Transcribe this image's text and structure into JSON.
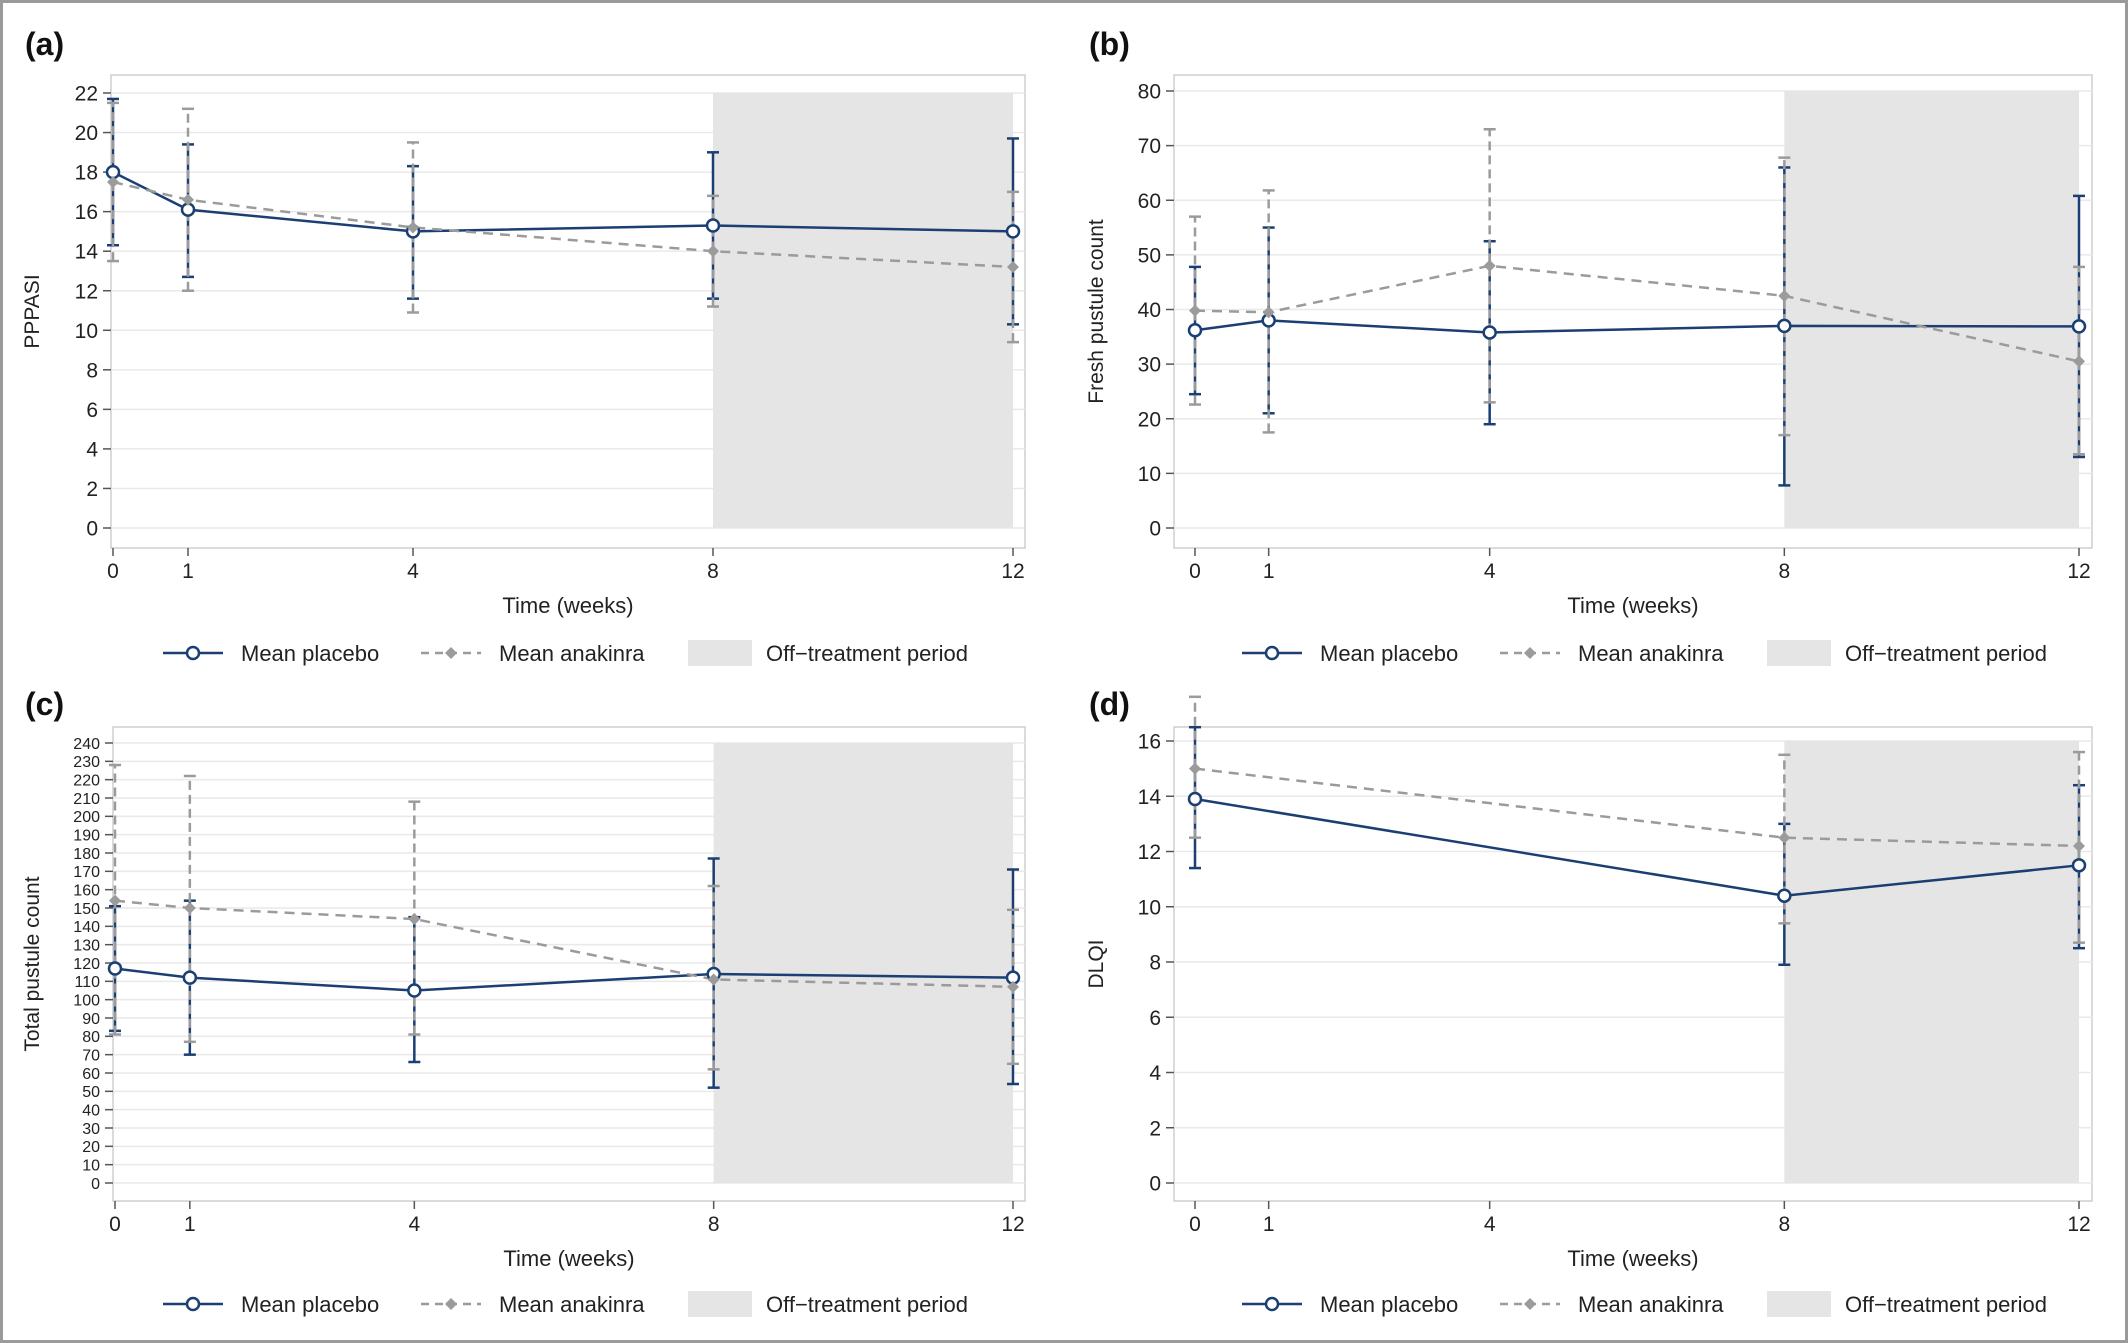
{
  "colors": {
    "placebo": "#1b3f73",
    "anakinra": "#9b9b9b",
    "offtreat": "#e5e5e5",
    "grid": "#e9e9e9",
    "axis": "#555555",
    "text": "#222222"
  },
  "chart_data": [
    {
      "panel_label": "(a)",
      "type": "line",
      "xlabel": "Time (weeks)",
      "ylabel": "PPPASI",
      "x": [
        0,
        1,
        4,
        8,
        12
      ],
      "xticks": [
        0,
        1,
        4,
        8,
        12
      ],
      "ylim": [
        0,
        22
      ],
      "yticks": [
        0,
        2,
        4,
        6,
        8,
        10,
        12,
        14,
        16,
        18,
        20,
        22
      ],
      "shaded": {
        "from": 8,
        "to": 12,
        "label": "Off−treatment period"
      },
      "series": [
        {
          "name": "Mean placebo",
          "style": "solid-circle",
          "values": [
            18.0,
            16.1,
            15.0,
            15.3,
            15.0
          ],
          "lower": [
            14.3,
            12.7,
            11.6,
            11.6,
            10.3
          ],
          "upper": [
            21.7,
            19.4,
            18.3,
            19.0,
            19.7
          ]
        },
        {
          "name": "Mean anakinra",
          "style": "dashed-diamond",
          "values": [
            17.5,
            16.6,
            15.2,
            14.0,
            13.2
          ],
          "lower": [
            13.5,
            12.0,
            10.9,
            11.2,
            9.4
          ],
          "upper": [
            21.5,
            21.2,
            19.5,
            16.8,
            17.0
          ]
        }
      ],
      "legend": [
        "Mean placebo",
        "Mean anakinra",
        "Off−treatment period"
      ]
    },
    {
      "panel_label": "(b)",
      "type": "line",
      "xlabel": "Time (weeks)",
      "ylabel": "Fresh pustule count",
      "x": [
        0,
        1,
        4,
        8,
        12
      ],
      "xticks": [
        0,
        1,
        4,
        8,
        12
      ],
      "ylim": [
        0,
        80
      ],
      "yticks": [
        0,
        10,
        20,
        30,
        40,
        50,
        60,
        70,
        80
      ],
      "shaded": {
        "from": 8,
        "to": 12,
        "label": "Off−treatment period"
      },
      "series": [
        {
          "name": "Mean placebo",
          "style": "solid-circle",
          "values": [
            36.2,
            38.0,
            35.8,
            37.0,
            36.9
          ],
          "lower": [
            24.5,
            21.0,
            19.0,
            7.8,
            13.0
          ],
          "upper": [
            47.8,
            55.0,
            52.5,
            66.0,
            60.8
          ]
        },
        {
          "name": "Mean anakinra",
          "style": "dashed-diamond",
          "values": [
            39.8,
            39.5,
            48.0,
            42.5,
            30.5
          ],
          "lower": [
            22.6,
            17.5,
            23.0,
            17.0,
            13.5
          ],
          "upper": [
            57.0,
            61.8,
            73.0,
            67.8,
            47.8
          ]
        }
      ],
      "legend": [
        "Mean placebo",
        "Mean anakinra",
        "Off−treatment period"
      ]
    },
    {
      "panel_label": "(c)",
      "type": "line",
      "xlabel": "Time (weeks)",
      "ylabel": "Total pustule count",
      "x": [
        0,
        1,
        4,
        8,
        12
      ],
      "xticks": [
        0,
        1,
        4,
        8,
        12
      ],
      "ylim": [
        0,
        240
      ],
      "yticks": [
        0,
        10,
        20,
        30,
        40,
        50,
        60,
        70,
        80,
        90,
        100,
        110,
        120,
        130,
        140,
        150,
        160,
        170,
        180,
        190,
        200,
        210,
        220,
        230,
        240
      ],
      "shaded": {
        "from": 8,
        "to": 12,
        "label": "Off−treatment period"
      },
      "series": [
        {
          "name": "Mean placebo",
          "style": "solid-circle",
          "values": [
            117,
            112,
            105,
            114,
            112
          ],
          "lower": [
            83,
            70,
            66,
            52,
            54
          ],
          "upper": [
            151,
            154,
            145,
            177,
            171
          ]
        },
        {
          "name": "Mean anakinra",
          "style": "dashed-diamond",
          "values": [
            154,
            150,
            144,
            111,
            107
          ],
          "lower": [
            81,
            77,
            81,
            62,
            65
          ],
          "upper": [
            228,
            222,
            208,
            162,
            149
          ]
        }
      ],
      "legend": [
        "Mean placebo",
        "Mean anakinra",
        "Off−treatment period"
      ]
    },
    {
      "panel_label": "(d)",
      "type": "line",
      "xlabel": "Time (weeks)",
      "ylabel": "DLQI",
      "x": [
        0,
        8,
        12
      ],
      "xticks": [
        0,
        1,
        4,
        8,
        12
      ],
      "ylim": [
        0,
        16
      ],
      "yticks": [
        0,
        2,
        4,
        6,
        8,
        10,
        12,
        14,
        16
      ],
      "shaded": {
        "from": 8,
        "to": 12,
        "label": "Off−treatment period"
      },
      "series": [
        {
          "name": "Mean placebo",
          "style": "solid-circle",
          "values": [
            13.9,
            10.4,
            11.5
          ],
          "lower": [
            11.4,
            7.9,
            8.5
          ],
          "upper": [
            16.5,
            13.0,
            14.4
          ]
        },
        {
          "name": "Mean anakinra",
          "style": "dashed-diamond",
          "values": [
            15.0,
            12.5,
            12.2
          ],
          "lower": [
            12.5,
            9.4,
            8.7
          ],
          "upper": [
            17.6,
            15.5,
            15.6
          ]
        }
      ],
      "legend": [
        "Mean placebo",
        "Mean anakinra",
        "Off−treatment period"
      ]
    }
  ]
}
